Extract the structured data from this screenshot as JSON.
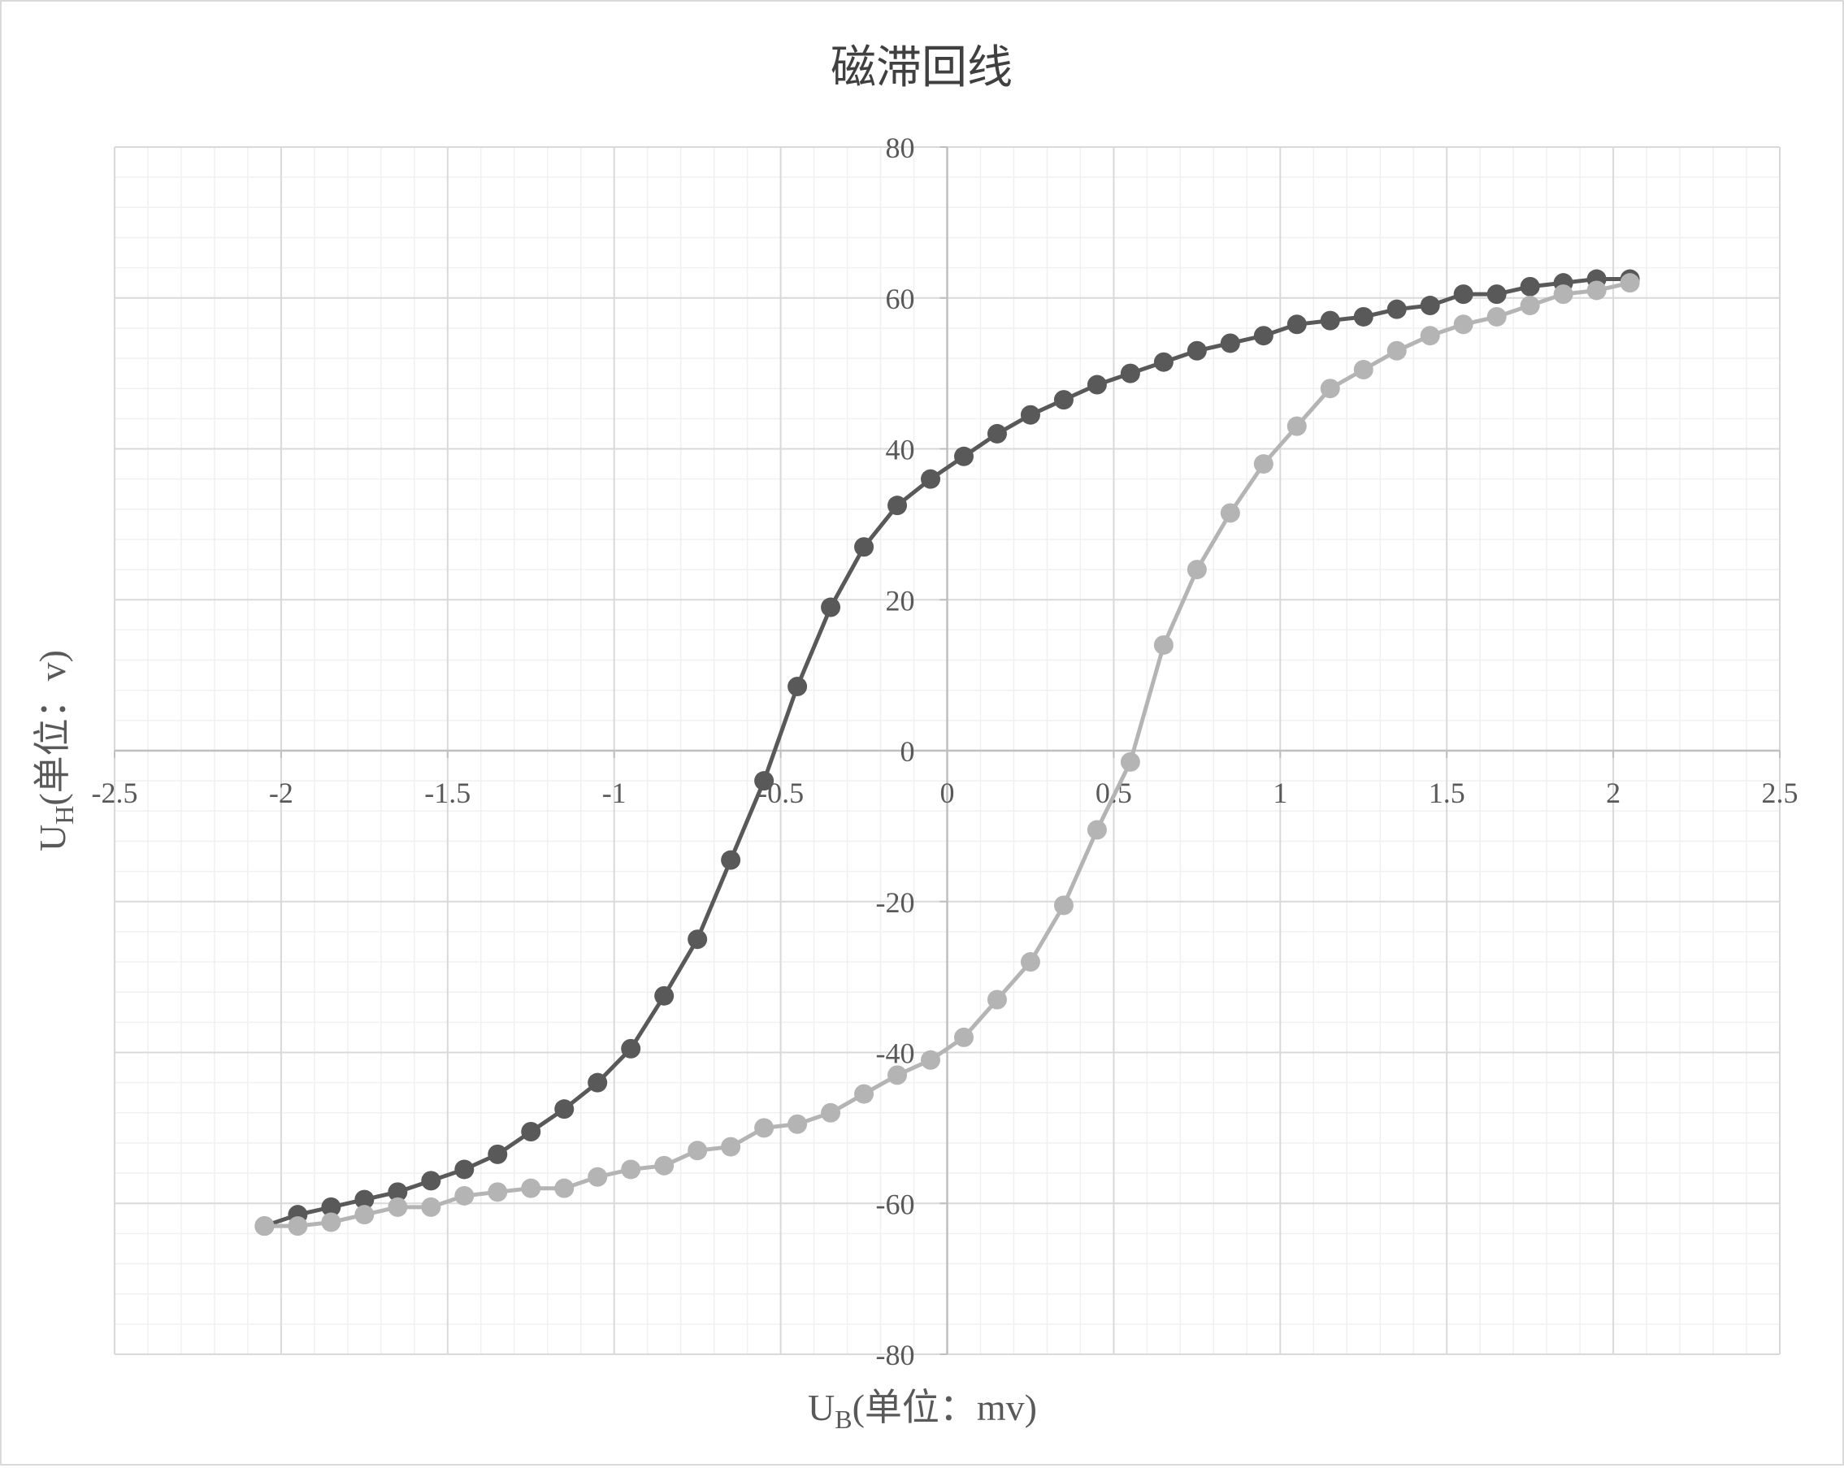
{
  "chart_data": {
    "type": "scatter",
    "title": "磁滞回线",
    "xlabel": {
      "main": "U",
      "sub": "B",
      "rest": "(单位：mv)"
    },
    "ylabel": {
      "main": "U",
      "sub": "H",
      "rest": "(单位：v)"
    },
    "xlim": [
      -2.5,
      2.5
    ],
    "ylim": [
      -80,
      80
    ],
    "xticks": [
      -2.5,
      -2,
      -1.5,
      -1,
      -0.5,
      0,
      0.5,
      1,
      1.5,
      2,
      2.5
    ],
    "xtick_labels": [
      "-2.5",
      "-2",
      "-1.5",
      "-1",
      "-0.5",
      "0",
      "0.5",
      "1",
      "1.5",
      "2",
      "2.5"
    ],
    "yticks": [
      -80,
      -60,
      -40,
      -20,
      0,
      20,
      40,
      60,
      80
    ],
    "ytick_labels": [
      "-80",
      "-60",
      "-40",
      "-20",
      "0",
      "20",
      "40",
      "60",
      "80"
    ],
    "grid": true,
    "minor_grid": true,
    "legend": "none",
    "series": [
      {
        "color": "#595959",
        "points": [
          [
            -2.05,
            -63.0
          ],
          [
            -1.95,
            -61.5
          ],
          [
            -1.85,
            -60.5
          ],
          [
            -1.75,
            -59.5
          ],
          [
            -1.65,
            -58.5
          ],
          [
            -1.55,
            -57.0
          ],
          [
            -1.45,
            -55.5
          ],
          [
            -1.35,
            -53.5
          ],
          [
            -1.25,
            -50.5
          ],
          [
            -1.15,
            -47.5
          ],
          [
            -1.05,
            -44.0
          ],
          [
            -0.95,
            -39.5
          ],
          [
            -0.85,
            -32.5
          ],
          [
            -0.75,
            -25.0
          ],
          [
            -0.65,
            -14.5
          ],
          [
            -0.55,
            -4.0
          ],
          [
            -0.45,
            8.5
          ],
          [
            -0.35,
            19.0
          ],
          [
            -0.25,
            27.0
          ],
          [
            -0.15,
            32.5
          ],
          [
            -0.05,
            36.0
          ],
          [
            0.05,
            39.0
          ],
          [
            0.15,
            42.0
          ],
          [
            0.25,
            44.5
          ],
          [
            0.35,
            46.5
          ],
          [
            0.45,
            48.5
          ],
          [
            0.55,
            50.0
          ],
          [
            0.65,
            51.5
          ],
          [
            0.75,
            53.0
          ],
          [
            0.85,
            54.0
          ],
          [
            0.95,
            55.0
          ],
          [
            1.05,
            56.5
          ],
          [
            1.15,
            57.0
          ],
          [
            1.25,
            57.5
          ],
          [
            1.35,
            58.5
          ],
          [
            1.45,
            59.0
          ],
          [
            1.55,
            60.5
          ],
          [
            1.65,
            60.5
          ],
          [
            1.75,
            61.5
          ],
          [
            1.85,
            62.0
          ],
          [
            1.95,
            62.5
          ],
          [
            2.05,
            62.5
          ]
        ]
      },
      {
        "color": "#b4b4b4",
        "points": [
          [
            2.05,
            62.0
          ],
          [
            1.95,
            61.0
          ],
          [
            1.85,
            60.5
          ],
          [
            1.75,
            59.0
          ],
          [
            1.65,
            57.5
          ],
          [
            1.55,
            56.5
          ],
          [
            1.45,
            55.0
          ],
          [
            1.35,
            53.0
          ],
          [
            1.25,
            50.5
          ],
          [
            1.15,
            48.0
          ],
          [
            1.05,
            43.0
          ],
          [
            0.95,
            38.0
          ],
          [
            0.85,
            31.5
          ],
          [
            0.75,
            24.0
          ],
          [
            0.65,
            14.0
          ],
          [
            0.55,
            -1.5
          ],
          [
            0.45,
            -10.5
          ],
          [
            0.35,
            -20.5
          ],
          [
            0.25,
            -28.0
          ],
          [
            0.15,
            -33.0
          ],
          [
            0.05,
            -38.0
          ],
          [
            -0.05,
            -41.0
          ],
          [
            -0.15,
            -43.0
          ],
          [
            -0.25,
            -45.5
          ],
          [
            -0.35,
            -48.0
          ],
          [
            -0.45,
            -49.5
          ],
          [
            -0.55,
            -50.0
          ],
          [
            -0.65,
            -52.5
          ],
          [
            -0.75,
            -53.0
          ],
          [
            -0.85,
            -55.0
          ],
          [
            -0.95,
            -55.5
          ],
          [
            -1.05,
            -56.5
          ],
          [
            -1.15,
            -58.0
          ],
          [
            -1.25,
            -58.0
          ],
          [
            -1.35,
            -58.5
          ],
          [
            -1.45,
            -59.0
          ],
          [
            -1.55,
            -60.5
          ],
          [
            -1.65,
            -60.5
          ],
          [
            -1.75,
            -61.5
          ],
          [
            -1.85,
            -62.5
          ],
          [
            -1.95,
            -63.0
          ],
          [
            -2.05,
            -63.0
          ]
        ]
      }
    ]
  }
}
